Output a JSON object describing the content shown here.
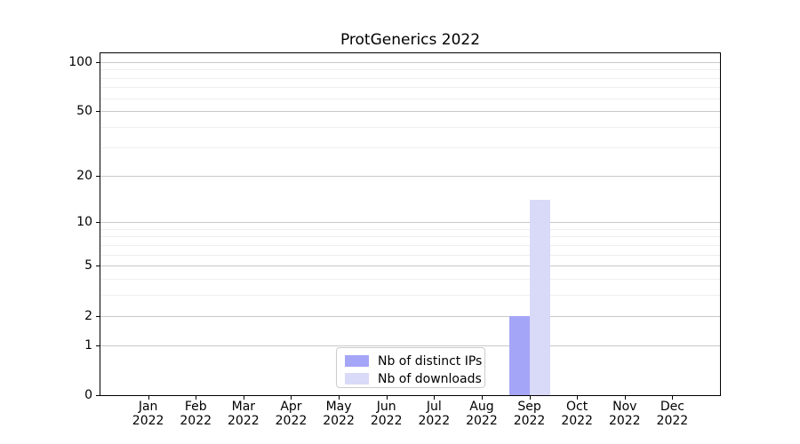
{
  "chart_data": {
    "type": "bar",
    "title": "ProtGenerics 2022",
    "categories": [
      {
        "month": "Jan",
        "year": "2022"
      },
      {
        "month": "Feb",
        "year": "2022"
      },
      {
        "month": "Mar",
        "year": "2022"
      },
      {
        "month": "Apr",
        "year": "2022"
      },
      {
        "month": "May",
        "year": "2022"
      },
      {
        "month": "Jun",
        "year": "2022"
      },
      {
        "month": "Jul",
        "year": "2022"
      },
      {
        "month": "Aug",
        "year": "2022"
      },
      {
        "month": "Sep",
        "year": "2022"
      },
      {
        "month": "Oct",
        "year": "2022"
      },
      {
        "month": "Nov",
        "year": "2022"
      },
      {
        "month": "Dec",
        "year": "2022"
      }
    ],
    "series": [
      {
        "name": "Nb of distinct IPs",
        "key": "distinct-ips",
        "color": "#a5a5f7",
        "values": [
          0,
          0,
          0,
          0,
          0,
          0,
          0,
          0,
          2,
          0,
          0,
          0
        ]
      },
      {
        "name": "Nb of downloads",
        "key": "downloads",
        "color": "#d9d9f8",
        "values": [
          0,
          0,
          0,
          0,
          0,
          0,
          0,
          0,
          14,
          0,
          0,
          0
        ]
      }
    ],
    "yscale": "log1p",
    "ylim": [
      0,
      113
    ],
    "yticks_major": [
      0,
      1,
      2,
      5,
      10,
      20,
      50,
      100
    ],
    "yticks_minor": [
      3,
      4,
      6,
      7,
      8,
      9,
      30,
      40,
      60,
      70,
      80,
      90
    ],
    "grid": true,
    "legend_position": "lower center",
    "colors": {
      "grid_major": "#c9c9c9",
      "grid_minor": "#eeeeee",
      "axis": "#000000",
      "background": "#ffffff",
      "legend_border": "#cccccc"
    }
  }
}
